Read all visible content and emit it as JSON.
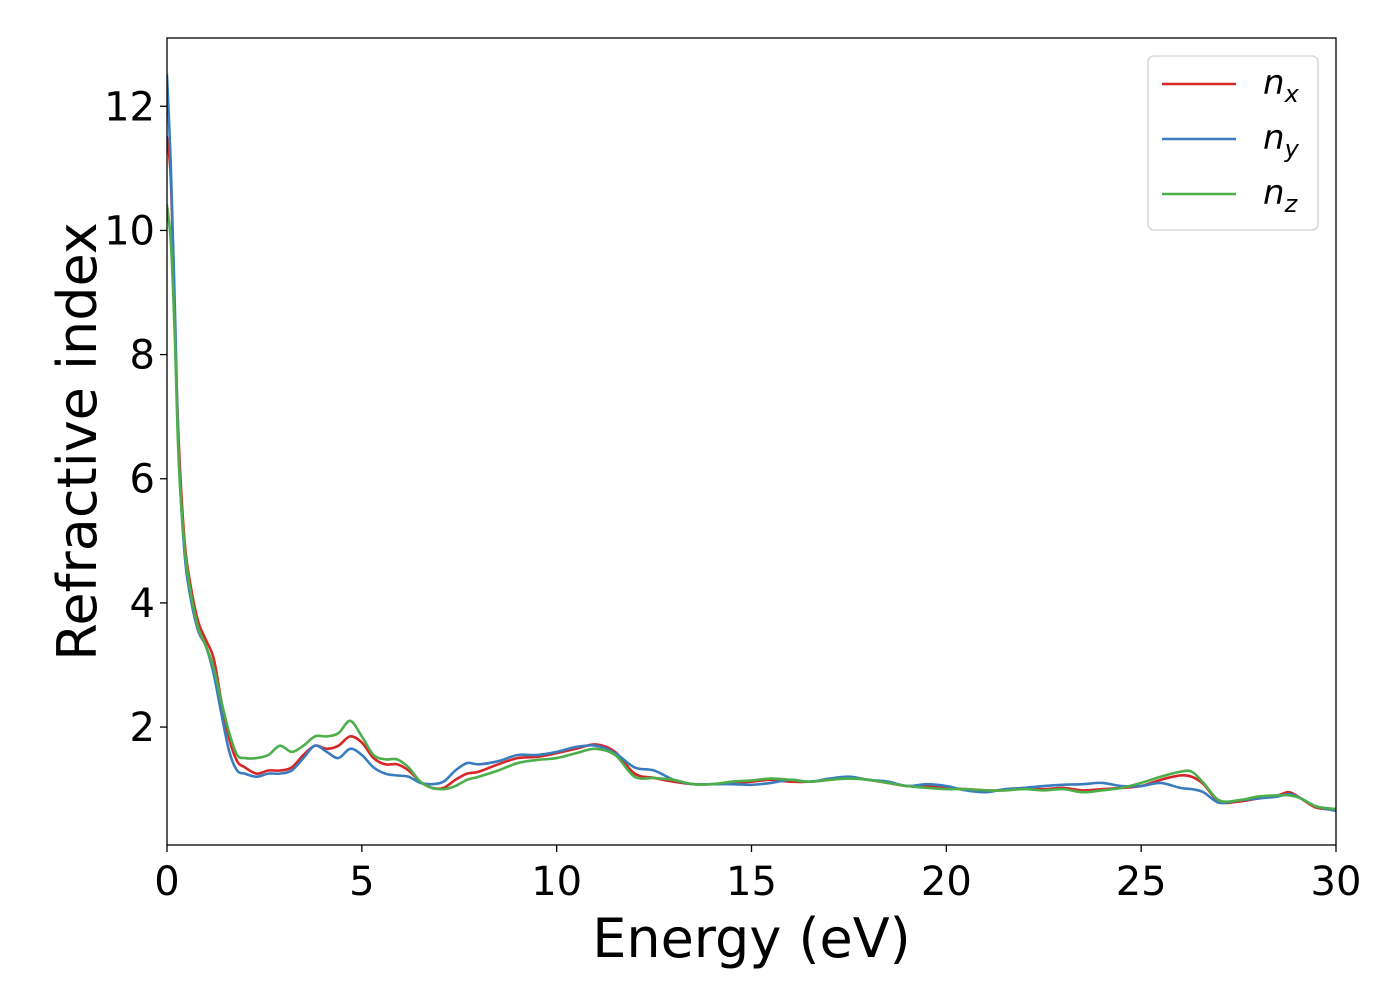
{
  "chart_data": {
    "type": "line",
    "title": "",
    "xlabel": "Energy (eV)",
    "ylabel": "Refractive index",
    "xlim": [
      0,
      30
    ],
    "ylim": [
      0.1,
      13.1
    ],
    "xticks": [
      0,
      5,
      10,
      15,
      20,
      25,
      30
    ],
    "yticks": [
      2,
      4,
      6,
      8,
      10,
      12
    ],
    "grid": false,
    "legend_position": "top-right",
    "series": [
      {
        "name": "n",
        "subscript": "x",
        "color": "#d62728",
        "x": [
          0,
          0.1,
          0.2,
          0.3,
          0.45,
          0.6,
          0.8,
          1.0,
          1.2,
          1.4,
          1.6,
          1.8,
          2.0,
          2.3,
          2.6,
          2.9,
          3.2,
          3.5,
          3.8,
          4.1,
          4.4,
          4.7,
          5.0,
          5.3,
          5.6,
          5.9,
          6.2,
          6.5,
          6.8,
          7.1,
          7.4,
          7.7,
          8.0,
          8.5,
          9.0,
          9.5,
          10.0,
          10.5,
          11.0,
          11.5,
          12.0,
          12.5,
          13.0,
          13.5,
          14.0,
          14.5,
          15.0,
          15.5,
          16.0,
          16.5,
          17.0,
          17.5,
          18.0,
          18.5,
          19.0,
          19.5,
          20.0,
          20.5,
          21.0,
          21.5,
          22.0,
          22.5,
          23.0,
          23.5,
          24.0,
          24.5,
          25.0,
          25.5,
          26.0,
          26.3,
          26.6,
          27.0,
          27.5,
          28.0,
          28.5,
          28.8,
          29.1,
          29.5,
          30.0
        ],
        "values": [
          11.5,
          10.8,
          8.5,
          6.6,
          5.0,
          4.3,
          3.7,
          3.4,
          3.1,
          2.4,
          1.8,
          1.45,
          1.35,
          1.25,
          1.3,
          1.3,
          1.35,
          1.55,
          1.7,
          1.65,
          1.7,
          1.85,
          1.75,
          1.5,
          1.4,
          1.4,
          1.3,
          1.12,
          1.02,
          1.02,
          1.15,
          1.25,
          1.28,
          1.4,
          1.5,
          1.52,
          1.58,
          1.65,
          1.72,
          1.6,
          1.25,
          1.18,
          1.12,
          1.08,
          1.08,
          1.1,
          1.12,
          1.15,
          1.12,
          1.12,
          1.15,
          1.18,
          1.15,
          1.1,
          1.05,
          1.05,
          1.02,
          1.0,
          0.98,
          0.98,
          1.02,
          1.0,
          1.02,
          0.98,
          1.0,
          1.02,
          1.05,
          1.15,
          1.22,
          1.2,
          1.08,
          0.8,
          0.8,
          0.85,
          0.9,
          0.95,
          0.85,
          0.7,
          0.68
        ]
      },
      {
        "name": "n",
        "subscript": "y",
        "color": "#3a7dbf",
        "x": [
          0,
          0.1,
          0.2,
          0.3,
          0.45,
          0.6,
          0.8,
          1.0,
          1.2,
          1.4,
          1.6,
          1.8,
          2.0,
          2.3,
          2.6,
          2.9,
          3.2,
          3.5,
          3.8,
          4.1,
          4.4,
          4.7,
          5.0,
          5.3,
          5.6,
          5.9,
          6.2,
          6.5,
          6.8,
          7.1,
          7.4,
          7.7,
          8.0,
          8.5,
          9.0,
          9.5,
          10.0,
          10.5,
          11.0,
          11.5,
          12.0,
          12.5,
          13.0,
          13.5,
          14.0,
          14.5,
          15.0,
          15.5,
          16.0,
          16.5,
          17.0,
          17.5,
          18.0,
          18.5,
          19.0,
          19.5,
          20.0,
          20.5,
          21.0,
          21.5,
          22.0,
          22.5,
          23.0,
          23.5,
          24.0,
          24.5,
          25.0,
          25.5,
          26.0,
          26.3,
          26.6,
          27.0,
          27.5,
          28.0,
          28.5,
          28.8,
          29.1,
          29.5,
          30.0
        ],
        "values": [
          12.5,
          11.0,
          8.8,
          6.4,
          4.8,
          4.1,
          3.55,
          3.3,
          2.85,
          2.2,
          1.6,
          1.3,
          1.25,
          1.2,
          1.25,
          1.25,
          1.3,
          1.5,
          1.7,
          1.6,
          1.5,
          1.65,
          1.55,
          1.35,
          1.25,
          1.22,
          1.2,
          1.1,
          1.08,
          1.12,
          1.3,
          1.42,
          1.4,
          1.45,
          1.55,
          1.55,
          1.6,
          1.68,
          1.7,
          1.58,
          1.35,
          1.3,
          1.15,
          1.08,
          1.08,
          1.08,
          1.07,
          1.1,
          1.15,
          1.12,
          1.17,
          1.2,
          1.15,
          1.12,
          1.05,
          1.08,
          1.05,
          0.98,
          0.95,
          1.0,
          1.02,
          1.05,
          1.07,
          1.08,
          1.1,
          1.05,
          1.05,
          1.1,
          1.02,
          1.0,
          0.95,
          0.78,
          0.82,
          0.85,
          0.88,
          0.92,
          0.85,
          0.72,
          0.65
        ]
      },
      {
        "name": "n",
        "subscript": "z",
        "color": "#4daf4a",
        "x": [
          0,
          0.1,
          0.2,
          0.3,
          0.45,
          0.6,
          0.8,
          1.0,
          1.2,
          1.4,
          1.6,
          1.8,
          2.0,
          2.3,
          2.6,
          2.9,
          3.2,
          3.5,
          3.8,
          4.1,
          4.4,
          4.7,
          5.0,
          5.3,
          5.6,
          5.9,
          6.2,
          6.5,
          6.8,
          7.1,
          7.4,
          7.7,
          8.0,
          8.5,
          9.0,
          9.5,
          10.0,
          10.5,
          11.0,
          11.5,
          12.0,
          12.5,
          13.0,
          13.5,
          14.0,
          14.5,
          15.0,
          15.5,
          16.0,
          16.5,
          17.0,
          17.5,
          18.0,
          18.5,
          19.0,
          19.5,
          20.0,
          20.5,
          21.0,
          21.5,
          22.0,
          22.5,
          23.0,
          23.5,
          24.0,
          24.5,
          25.0,
          25.5,
          26.0,
          26.3,
          26.6,
          27.0,
          27.5,
          28.0,
          28.5,
          28.8,
          29.1,
          29.5,
          30.0
        ],
        "values": [
          10.4,
          9.8,
          8.3,
          6.3,
          4.9,
          4.2,
          3.6,
          3.3,
          2.95,
          2.4,
          1.9,
          1.55,
          1.5,
          1.5,
          1.55,
          1.7,
          1.6,
          1.7,
          1.85,
          1.85,
          1.9,
          2.1,
          1.85,
          1.55,
          1.48,
          1.48,
          1.35,
          1.12,
          1.02,
          1.0,
          1.05,
          1.15,
          1.2,
          1.3,
          1.42,
          1.47,
          1.5,
          1.58,
          1.65,
          1.55,
          1.2,
          1.18,
          1.15,
          1.08,
          1.08,
          1.12,
          1.14,
          1.17,
          1.15,
          1.12,
          1.15,
          1.17,
          1.15,
          1.1,
          1.05,
          1.02,
          1.0,
          1.0,
          0.98,
          0.98,
          1.0,
          0.98,
          1.0,
          0.95,
          0.98,
          1.02,
          1.1,
          1.2,
          1.28,
          1.28,
          1.1,
          0.82,
          0.82,
          0.88,
          0.9,
          0.9,
          0.85,
          0.72,
          0.68
        ]
      }
    ]
  }
}
